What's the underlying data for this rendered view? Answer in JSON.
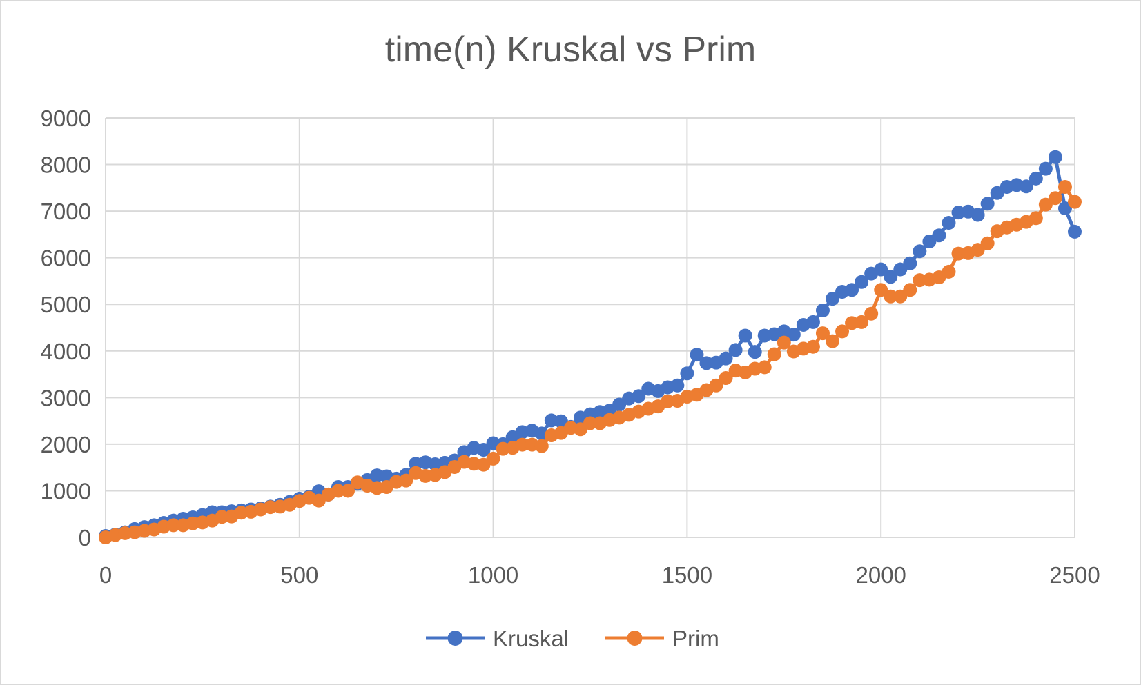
{
  "chart_data": {
    "type": "line",
    "title": "time(n) Kruskal vs Prim",
    "xlabel": "",
    "ylabel": "",
    "xlim": [
      0,
      2500
    ],
    "ylim": [
      0,
      9000
    ],
    "x_ticks": [
      "0",
      "500",
      "1000",
      "1500",
      "2000",
      "2500"
    ],
    "y_ticks": [
      "0",
      "1000",
      "2000",
      "3000",
      "4000",
      "5000",
      "6000",
      "7000",
      "8000",
      "9000"
    ],
    "grid": true,
    "legend_position": "bottom",
    "marker": "circle",
    "x": [
      0,
      25,
      50,
      75,
      100,
      125,
      150,
      175,
      200,
      225,
      250,
      275,
      300,
      325,
      350,
      375,
      400,
      425,
      450,
      475,
      500,
      525,
      550,
      575,
      600,
      625,
      650,
      675,
      700,
      725,
      750,
      775,
      800,
      825,
      850,
      875,
      900,
      925,
      950,
      975,
      1000,
      1025,
      1050,
      1075,
      1100,
      1125,
      1150,
      1175,
      1200,
      1225,
      1250,
      1275,
      1300,
      1325,
      1350,
      1375,
      1400,
      1425,
      1450,
      1475,
      1500,
      1525,
      1550,
      1575,
      1600,
      1625,
      1650,
      1675,
      1700,
      1725,
      1750,
      1775,
      1800,
      1825,
      1850,
      1875,
      1900,
      1925,
      1950,
      1975,
      2000,
      2025,
      2050,
      2075,
      2100,
      2125,
      2150,
      2175,
      2200,
      2225,
      2250,
      2275,
      2300,
      2325,
      2350,
      2375,
      2400,
      2425,
      2450,
      2475,
      2500
    ],
    "series": [
      {
        "name": "Kruskal",
        "color": "#4472c4",
        "values": [
          30,
          60,
          110,
          180,
          220,
          260,
          310,
          360,
          400,
          430,
          480,
          540,
          540,
          560,
          580,
          600,
          620,
          660,
          700,
          760,
          830,
          870,
          990,
          920,
          1080,
          1080,
          1150,
          1230,
          1330,
          1310,
          1260,
          1340,
          1580,
          1610,
          1570,
          1600,
          1650,
          1830,
          1920,
          1880,
          2020,
          2000,
          2150,
          2260,
          2290,
          2230,
          2510,
          2490,
          2370,
          2570,
          2640,
          2690,
          2720,
          2850,
          2980,
          3030,
          3190,
          3140,
          3220,
          3260,
          3520,
          3920,
          3740,
          3750,
          3840,
          4020,
          4330,
          3980,
          4330,
          4360,
          4420,
          4350,
          4560,
          4620,
          4870,
          5120,
          5270,
          5310,
          5480,
          5660,
          5750,
          5590,
          5750,
          5880,
          6140,
          6350,
          6480,
          6750,
          6970,
          6990,
          6920,
          7160,
          7390,
          7520,
          7560,
          7530,
          7700,
          7910,
          8160,
          7060,
          6560
        ]
      },
      {
        "name": "Prim",
        "color": "#ed7d31",
        "values": [
          0,
          50,
          90,
          110,
          140,
          170,
          230,
          260,
          260,
          300,
          320,
          360,
          440,
          450,
          530,
          550,
          600,
          650,
          660,
          700,
          780,
          850,
          790,
          920,
          1000,
          1000,
          1180,
          1110,
          1060,
          1080,
          1190,
          1220,
          1380,
          1320,
          1340,
          1400,
          1510,
          1620,
          1580,
          1560,
          1690,
          1900,
          1920,
          1990,
          1990,
          1960,
          2190,
          2240,
          2350,
          2320,
          2450,
          2450,
          2520,
          2570,
          2630,
          2700,
          2760,
          2810,
          2920,
          2930,
          3020,
          3060,
          3160,
          3260,
          3420,
          3580,
          3540,
          3620,
          3650,
          3930,
          4180,
          3990,
          4050,
          4090,
          4380,
          4210,
          4420,
          4600,
          4620,
          4800,
          5310,
          5170,
          5170,
          5310,
          5520,
          5530,
          5580,
          5700,
          6090,
          6100,
          6170,
          6310,
          6570,
          6650,
          6710,
          6770,
          6850,
          7140,
          7280,
          7520,
          7200
        ]
      }
    ]
  }
}
